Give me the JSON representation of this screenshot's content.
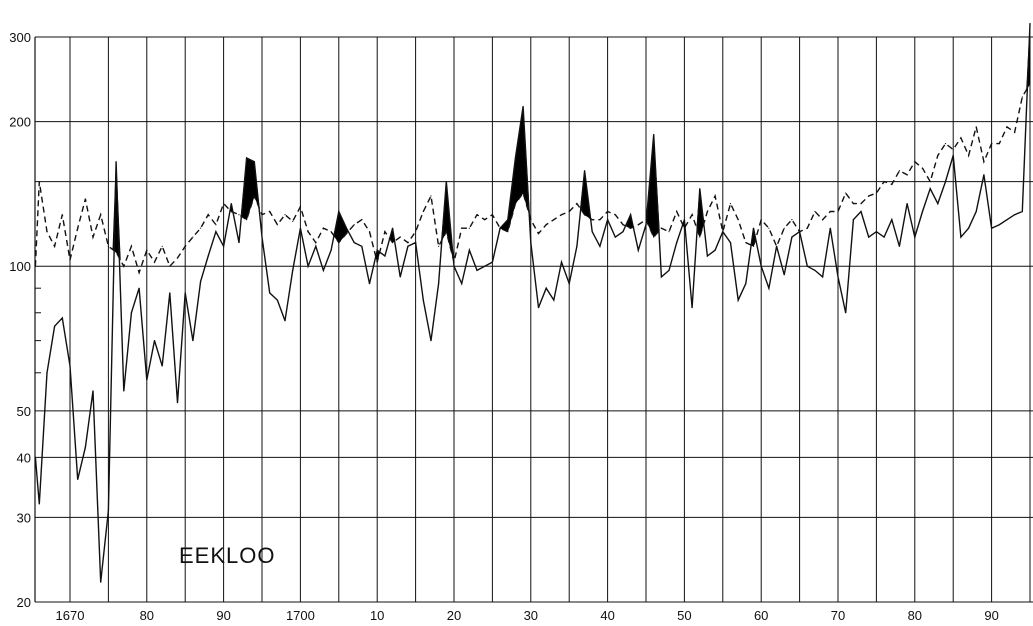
{
  "chart_data": {
    "type": "line",
    "title": "EEKLOO",
    "xlabel": "",
    "ylabel": "",
    "y_scale": "log",
    "ylim": [
      20,
      320
    ],
    "xlim": [
      1665.5,
      1795.5
    ],
    "y_ticks": [
      20,
      30,
      40,
      50,
      100,
      200,
      300
    ],
    "y_tick_labels": [
      "20",
      "30",
      "40",
      "50",
      "100",
      "200",
      "300"
    ],
    "x_ticks": [
      1670,
      1680,
      1690,
      1700,
      1710,
      1720,
      1730,
      1740,
      1750,
      1760,
      1770,
      1780,
      1790
    ],
    "x_tick_labels": [
      "1670",
      "80",
      "90",
      "1700",
      "10",
      "20",
      "30",
      "40",
      "50",
      "60",
      "70",
      "80",
      "90"
    ],
    "grid": true,
    "fill_where_solid_above_dashed": "black",
    "series": [
      {
        "style": "dashed",
        "x": [
          1665.5,
          1666,
          1667,
          1668,
          1669,
          1670,
          1671,
          1672,
          1673,
          1674,
          1675,
          1676,
          1677,
          1678,
          1679,
          1680,
          1681,
          1682,
          1683,
          1684,
          1685,
          1686,
          1687,
          1688,
          1689,
          1690,
          1691,
          1692,
          1693,
          1694,
          1695,
          1696,
          1697,
          1698,
          1699,
          1700,
          1701,
          1702,
          1703,
          1704,
          1705,
          1706,
          1707,
          1708,
          1709,
          1710,
          1711,
          1712,
          1713,
          1714,
          1715,
          1716,
          1717,
          1718,
          1719,
          1720,
          1721,
          1722,
          1723,
          1724,
          1725,
          1726,
          1727,
          1728,
          1729,
          1730,
          1731,
          1732,
          1733,
          1734,
          1735,
          1736,
          1737,
          1738,
          1739,
          1740,
          1741,
          1742,
          1743,
          1744,
          1745,
          1746,
          1747,
          1748,
          1749,
          1750,
          1751,
          1752,
          1753,
          1754,
          1755,
          1756,
          1757,
          1758,
          1759,
          1760,
          1761,
          1762,
          1763,
          1764,
          1765,
          1766,
          1767,
          1768,
          1769,
          1770,
          1771,
          1772,
          1773,
          1774,
          1775,
          1776,
          1777,
          1778,
          1779,
          1780,
          1781,
          1782,
          1783,
          1784,
          1785,
          1786,
          1787,
          1788,
          1789,
          1790,
          1791,
          1792,
          1793,
          1794,
          1795
        ],
        "values": [
          100,
          150,
          118,
          110,
          128,
          103,
          120,
          138,
          115,
          128,
          110,
          107,
          100,
          110,
          97,
          108,
          102,
          110,
          100,
          104,
          110,
          115,
          120,
          128,
          122,
          135,
          130,
          128,
          125,
          140,
          128,
          130,
          122,
          128,
          124,
          133,
          118,
          112,
          120,
          118,
          112,
          117,
          122,
          125,
          118,
          102,
          118,
          112,
          115,
          112,
          118,
          130,
          140,
          110,
          118,
          102,
          120,
          120,
          128,
          125,
          128,
          120,
          118,
          135,
          142,
          125,
          117,
          122,
          125,
          128,
          130,
          135,
          128,
          125,
          125,
          130,
          128,
          122,
          120,
          122,
          125,
          115,
          120,
          118,
          130,
          120,
          128,
          115,
          130,
          140,
          118,
          135,
          125,
          112,
          110,
          125,
          120,
          110,
          120,
          125,
          118,
          120,
          130,
          125,
          130,
          130,
          142,
          135,
          135,
          140,
          142,
          150,
          148,
          158,
          155,
          165,
          160,
          150,
          170,
          180,
          175,
          185,
          170,
          195,
          165,
          180,
          180,
          195,
          190,
          225,
          240
        ]
      },
      {
        "style": "solid",
        "x": [
          1665.5,
          1666,
          1667,
          1668,
          1669,
          1670,
          1671,
          1672,
          1673,
          1674,
          1675,
          1676,
          1677,
          1678,
          1679,
          1680,
          1681,
          1682,
          1683,
          1684,
          1685,
          1686,
          1687,
          1688,
          1689,
          1690,
          1691,
          1692,
          1693,
          1694,
          1695,
          1696,
          1697,
          1698,
          1699,
          1700,
          1701,
          1702,
          1703,
          1704,
          1705,
          1706,
          1707,
          1708,
          1709,
          1710,
          1711,
          1712,
          1713,
          1714,
          1715,
          1716,
          1717,
          1718,
          1719,
          1720,
          1721,
          1722,
          1723,
          1724,
          1725,
          1726,
          1727,
          1728,
          1729,
          1730,
          1731,
          1732,
          1733,
          1734,
          1735,
          1736,
          1737,
          1738,
          1739,
          1740,
          1741,
          1742,
          1743,
          1744,
          1745,
          1746,
          1747,
          1748,
          1749,
          1750,
          1751,
          1752,
          1753,
          1754,
          1755,
          1756,
          1757,
          1758,
          1759,
          1760,
          1761,
          1762,
          1763,
          1764,
          1765,
          1766,
          1767,
          1768,
          1769,
          1770,
          1771,
          1772,
          1773,
          1774,
          1775,
          1776,
          1777,
          1778,
          1779,
          1780,
          1781,
          1782,
          1783,
          1784,
          1785,
          1786,
          1787,
          1788,
          1789,
          1790,
          1791,
          1792,
          1793,
          1794,
          1795
        ],
        "values": [
          40,
          32,
          60,
          75,
          78,
          62,
          36,
          42,
          55,
          22,
          31,
          165,
          55,
          80,
          90,
          58,
          70,
          62,
          88,
          52,
          88,
          70,
          93,
          105,
          118,
          110,
          135,
          112,
          168,
          165,
          115,
          88,
          85,
          77,
          98,
          120,
          100,
          110,
          98,
          108,
          130,
          120,
          112,
          110,
          92,
          108,
          105,
          120,
          95,
          110,
          112,
          85,
          70,
          92,
          150,
          100,
          92,
          108,
          98,
          100,
          102,
          120,
          125,
          168,
          215,
          112,
          82,
          90,
          85,
          102,
          92,
          110,
          158,
          118,
          110,
          125,
          115,
          118,
          128,
          108,
          122,
          188,
          95,
          98,
          112,
          125,
          82,
          145,
          105,
          108,
          118,
          112,
          85,
          92,
          120,
          100,
          90,
          110,
          96,
          115,
          118,
          100,
          98,
          95,
          120,
          95,
          80,
          125,
          130,
          115,
          118,
          115,
          125,
          110,
          135,
          115,
          130,
          145,
          135,
          150,
          170,
          115,
          120,
          130,
          155,
          120,
          122,
          125,
          128,
          130,
          320
        ]
      }
    ]
  }
}
